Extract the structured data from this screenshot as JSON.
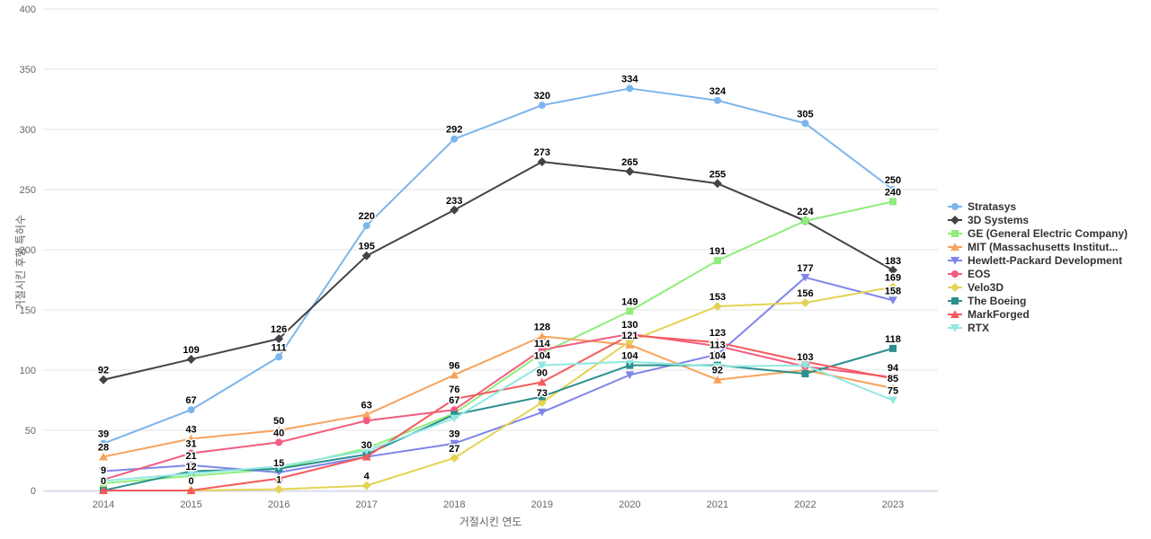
{
  "chart_data": {
    "type": "line",
    "title": "",
    "xlabel": "거절시킨 연도",
    "ylabel": "거절시킨 후행 특허수",
    "categories": [
      "2014",
      "2015",
      "2016",
      "2017",
      "2018",
      "2019",
      "2020",
      "2021",
      "2022",
      "2023"
    ],
    "ylim": [
      0,
      400
    ],
    "yticks": [
      0,
      50,
      100,
      150,
      200,
      250,
      300,
      350,
      400
    ],
    "grid": true,
    "legend_position": "right",
    "series": [
      {
        "name": "Stratasys",
        "color": "#7cb5ec",
        "marker": "circle",
        "values": [
          39,
          67,
          111,
          220,
          292,
          320,
          334,
          324,
          305,
          250
        ],
        "labels": [
          39,
          67,
          111,
          220,
          292,
          320,
          334,
          324,
          305,
          250
        ]
      },
      {
        "name": "3D Systems",
        "color": "#434348",
        "marker": "diamond",
        "values": [
          92,
          109,
          126,
          195,
          233,
          273,
          265,
          255,
          224,
          183
        ],
        "labels": [
          92,
          109,
          126,
          195,
          233,
          273,
          265,
          255,
          null,
          183
        ]
      },
      {
        "name": "GE (General Electric Company)",
        "color": "#90ed7d",
        "marker": "square",
        "values": [
          6,
          12,
          18,
          35,
          64,
          114,
          149,
          191,
          224,
          240
        ],
        "labels": [
          null,
          12,
          null,
          null,
          null,
          114,
          149,
          191,
          224,
          240
        ]
      },
      {
        "name": "MIT (Massachusetts Institut...",
        "color": "#f7a35c",
        "marker": "triangle",
        "values": [
          28,
          43,
          50,
          63,
          96,
          128,
          121,
          92,
          100,
          85
        ],
        "labels": [
          28,
          43,
          50,
          63,
          96,
          128,
          121,
          92,
          null,
          85
        ]
      },
      {
        "name": "Hewlett-Packard Development",
        "color": "#8085e9",
        "marker": "triangle-down",
        "values": [
          16,
          21,
          15,
          28,
          39,
          65,
          96,
          113,
          177,
          158
        ],
        "labels": [
          null,
          21,
          15,
          null,
          39,
          null,
          null,
          113,
          177,
          158
        ]
      },
      {
        "name": "EOS",
        "color": "#f15c80",
        "marker": "circle",
        "values": [
          9,
          31,
          40,
          58,
          67,
          117,
          130,
          120,
          103,
          94
        ],
        "labels": [
          9,
          31,
          40,
          null,
          67,
          null,
          130,
          null,
          103,
          94
        ]
      },
      {
        "name": "Velo3D",
        "color": "#e4d354",
        "marker": "diamond",
        "values": [
          0,
          0,
          1,
          4,
          27,
          73,
          124,
          153,
          156,
          169
        ],
        "labels": [
          null,
          null,
          1,
          4,
          27,
          73,
          null,
          153,
          156,
          169
        ]
      },
      {
        "name": "The Boeing",
        "color": "#2b908f",
        "marker": "square",
        "values": [
          0,
          16,
          18,
          30,
          63,
          78,
          104,
          104,
          97,
          118
        ],
        "labels": [
          0,
          null,
          null,
          30,
          null,
          null,
          104,
          104,
          null,
          118
        ]
      },
      {
        "name": "MarkForged",
        "color": "#f45b5b",
        "marker": "triangle",
        "values": [
          0,
          0,
          10,
          28,
          76,
          90,
          129,
          123,
          107,
          93
        ],
        "labels": [
          null,
          0,
          null,
          null,
          76,
          90,
          null,
          123,
          null,
          null
        ]
      },
      {
        "name": "RTX",
        "color": "#91e8e1",
        "marker": "triangle-down",
        "values": [
          8,
          14,
          20,
          33,
          60,
          104,
          107,
          103,
          104,
          75
        ],
        "labels": [
          null,
          null,
          null,
          null,
          null,
          104,
          null,
          null,
          null,
          75
        ]
      }
    ]
  }
}
